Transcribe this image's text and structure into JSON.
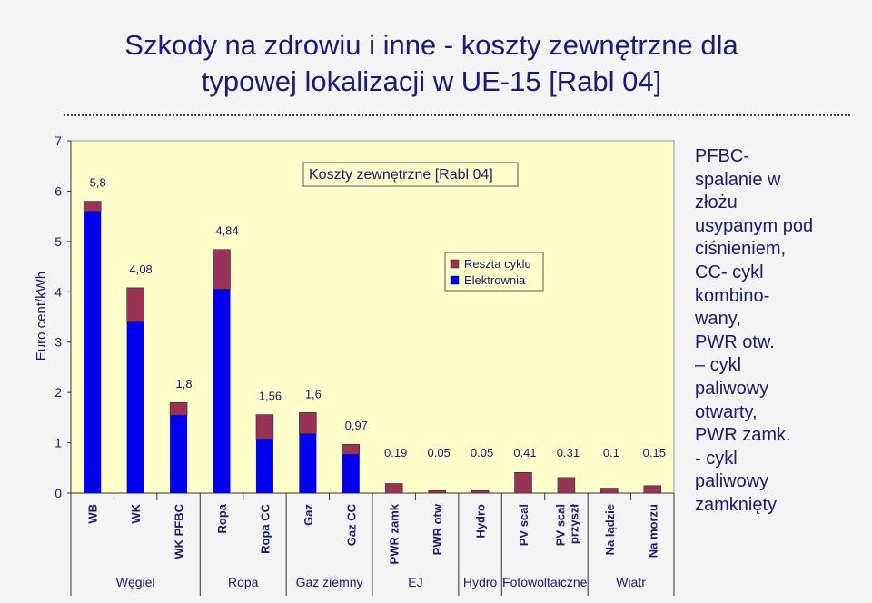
{
  "slide": {
    "title_line1": "Szkody na zdrowiu i inne - koszty zewnętrzne dla",
    "title_line2": "typowej lokalizacji w UE-15 [Rabl 04]",
    "note": "PFBC-\nspalanie w\nzłożu\nusypanym pod\nciśnieniem,\nCC- cykl\nkombino-\nwany,\nPWR otw.\n– cykl\npaliwowy\notwarty,\nPWR zamk.\n- cykl\npaliwowy\nzamknięty"
  },
  "colors": {
    "plot_bg": "#ffffcc",
    "elektrownia": "#0000ee",
    "reszta": "#993355",
    "text": "#1a1a6e",
    "title": "#1a1a7a"
  },
  "chart_data": {
    "type": "bar",
    "stacked": true,
    "title": "Koszty zewnętrzne [Rabl 04]",
    "ylabel": "Euro cent/kWh",
    "ylim": [
      0,
      7
    ],
    "yticks": [
      "0",
      "1",
      "2",
      "3",
      "4",
      "5",
      "6",
      "7"
    ],
    "categories": [
      "WB",
      "WK",
      "WK PFBC",
      "Ropa",
      "Ropa CC",
      "Gaz",
      "Gaz CC",
      "PWR zamk",
      "PWR otw",
      "Hydro",
      "PV scal",
      "PV scal przyszł",
      "Na lądzie",
      "Na morzu"
    ],
    "series": [
      {
        "name": "Elektrownia",
        "values": [
          5.6,
          3.4,
          1.55,
          4.05,
          1.08,
          1.18,
          0.77,
          0.0,
          0.0,
          0.0,
          0.0,
          0.0,
          0.0,
          0.0
        ]
      },
      {
        "name": "Reszta cyklu",
        "values": [
          0.2,
          0.68,
          0.25,
          0.79,
          0.48,
          0.42,
          0.2,
          0.19,
          0.05,
          0.05,
          0.41,
          0.31,
          0.1,
          0.15
        ]
      }
    ],
    "data_labels": [
      "5,8",
      "4,08",
      "1,8",
      "4,84",
      "1,56",
      "1,6",
      "0,97",
      "0.19",
      "0.05",
      "0.05",
      "0.41",
      "0.31",
      "0.1",
      "0.15"
    ],
    "groups": [
      {
        "label": "Węgiel",
        "categories": [
          "WB",
          "WK",
          "WK PFBC"
        ]
      },
      {
        "label": "Ropa",
        "categories": [
          "Ropa",
          "Ropa CC"
        ]
      },
      {
        "label": "Gaz ziemny",
        "categories": [
          "Gaz",
          "Gaz CC"
        ]
      },
      {
        "label": "EJ",
        "categories": [
          "PWR zamk",
          "PWR otw"
        ]
      },
      {
        "label": "Hydro",
        "categories": [
          "Hydro"
        ]
      },
      {
        "label": "Fotowoltaiczne",
        "categories": [
          "PV scal",
          "PV scal przyszł"
        ]
      },
      {
        "label": "Wiatr",
        "categories": [
          "Na lądzie",
          "Na morzu"
        ]
      }
    ],
    "legend_position": "center",
    "grid": false
  }
}
